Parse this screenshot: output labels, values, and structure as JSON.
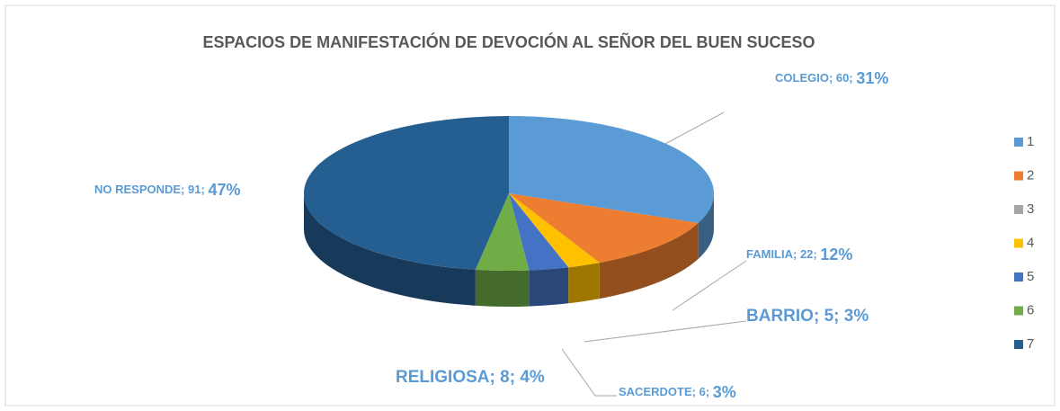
{
  "chart_data": {
    "type": "pie3d",
    "title": "ESPACIOS DE MANIFESTACIÓN DE DEVOCIÓN AL SEÑOR DEL BUEN SUCESO",
    "categories": [
      "1",
      "2",
      "3",
      "4",
      "5",
      "6",
      "7"
    ],
    "labels": [
      "COLEGIO",
      "FAMILIA",
      null,
      "BARRIO",
      "SACERDOTE",
      "RELIGIOSA",
      "NO RESPONDE"
    ],
    "values": [
      60,
      22,
      0,
      5,
      6,
      8,
      91
    ],
    "percent_labels": [
      "31%",
      "12%",
      null,
      "3%",
      "3%",
      "4%",
      "47%"
    ],
    "separator": "; ",
    "colors": [
      "#5b9bd5",
      "#ed7d31",
      "#a5a5a5",
      "#ffc000",
      "#4472c4",
      "#70ad47",
      "#255e91"
    ],
    "legend": "right"
  }
}
